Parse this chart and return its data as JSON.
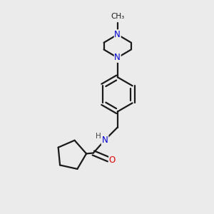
{
  "bg_color": "#ebebeb",
  "bond_color": "#1a1a1a",
  "N_color": "#0000cc",
  "O_color": "#dd0000",
  "line_width": 1.6,
  "font_size": 8.5,
  "figsize": [
    3.0,
    3.0
  ],
  "dpi": 100,
  "xlim": [
    0,
    10
  ],
  "ylim": [
    0,
    10
  ]
}
